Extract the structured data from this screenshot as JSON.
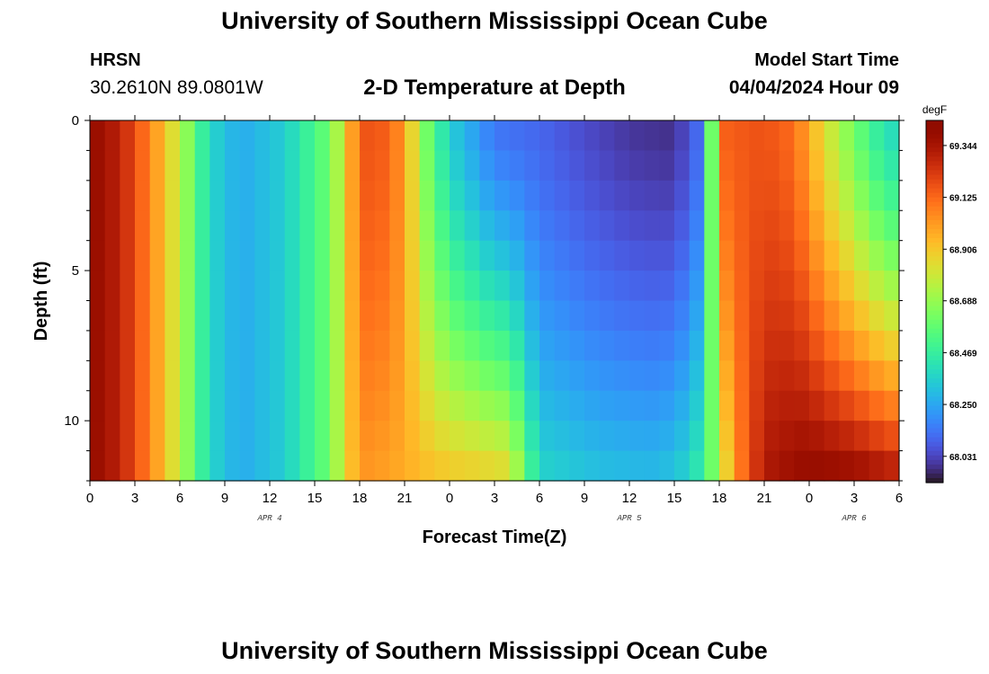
{
  "header": {
    "title": "University of Southern Mississippi Ocean Cube",
    "station": "HRSN",
    "coordinates": "30.2610N  89.0801W",
    "subtitle": "2-D Temperature at Depth",
    "model_start_label": "Model Start Time",
    "model_start_value": "04/04/2024 Hour 09"
  },
  "footer": {
    "title": "University of Southern Mississippi Ocean Cube"
  },
  "chart_data": {
    "type": "heatmap",
    "title": "2-D Temperature at Depth",
    "xlabel": "Forecast Time(Z)",
    "ylabel": "Depth (ft)",
    "x_hours_range": [
      0,
      54
    ],
    "y_range": [
      0,
      12
    ],
    "x_tick_labels": [
      "0",
      "3",
      "6",
      "9",
      "12",
      "15",
      "18",
      "21",
      "0",
      "3",
      "6",
      "9",
      "12",
      "15",
      "18",
      "21",
      "0",
      "3",
      "6"
    ],
    "y_tick_labels": [
      "0",
      "5",
      "10"
    ],
    "y_tick_values": [
      0,
      5,
      10
    ],
    "date_labels": [
      {
        "text": "APR 4",
        "hour": 12
      },
      {
        "text": "APR 5",
        "hour": 36
      },
      {
        "text": "APR 6",
        "hour": 51
      }
    ],
    "colorbar": {
      "unit": "degF",
      "min": 67.92,
      "max": 69.45,
      "tick_labels": [
        "69.344",
        "69.125",
        "68.906",
        "68.688",
        "68.469",
        "68.250",
        "68.031"
      ],
      "tick_values": [
        69.344,
        69.125,
        68.906,
        68.688,
        68.469,
        68.25,
        68.031
      ]
    },
    "colors": {
      "cold": "#30123b",
      "mid": "#46f884",
      "warm": "#7a0403"
    },
    "description_of_field": "Temperature (degF) by forecast hour and depth; warm at start, cool mid-period, warm bottom-heavy pool after hour 43."
  }
}
